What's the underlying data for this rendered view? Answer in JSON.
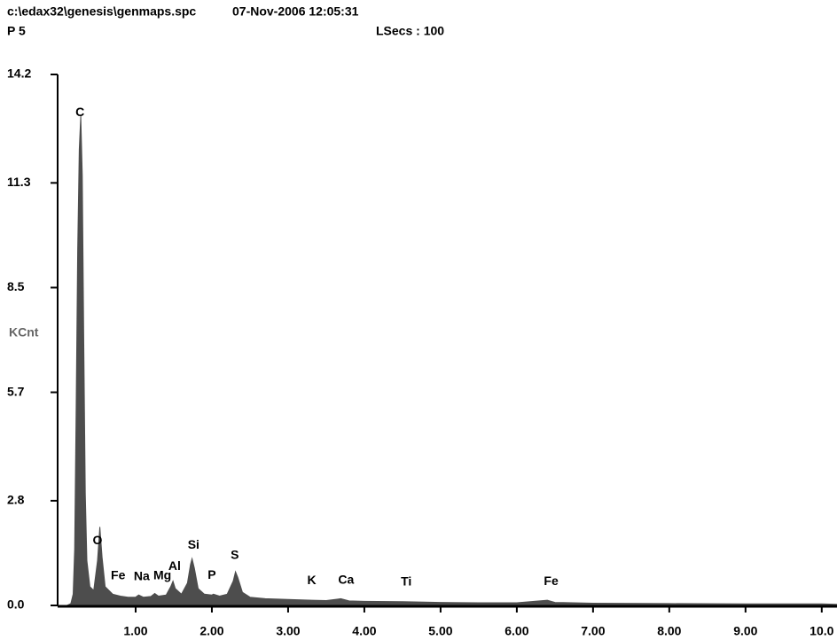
{
  "chart_data": {
    "type": "area",
    "title": "c:\\edax32\\genesis\\genmaps.spc",
    "timestamp": "07-Nov-2006 12:05:31",
    "subtitle": "P 5",
    "live_time": "LSecs : 100",
    "ylabel": "KCnt",
    "color": "#4d4d4d",
    "x": [
      0.1,
      0.15,
      0.18,
      0.2,
      0.22,
      0.24,
      0.26,
      0.28,
      0.3,
      0.32,
      0.34,
      0.36,
      0.4,
      0.45,
      0.5,
      0.53,
      0.56,
      0.6,
      0.7,
      0.8,
      0.9,
      1.0,
      1.04,
      1.1,
      1.2,
      1.25,
      1.3,
      1.4,
      1.46,
      1.49,
      1.52,
      1.6,
      1.68,
      1.72,
      1.74,
      1.77,
      1.82,
      1.9,
      2.0,
      2.02,
      2.1,
      2.2,
      2.28,
      2.31,
      2.34,
      2.4,
      2.5,
      2.7,
      3.0,
      3.31,
      3.5,
      3.69,
      3.8,
      4.0,
      4.51,
      5.0,
      5.5,
      6.0,
      6.4,
      6.5,
      7.0,
      8.0,
      9.0,
      10.0,
      10.2
    ],
    "values": [
      0.0,
      0.05,
      0.3,
      1.5,
      5.3,
      9.5,
      12.2,
      13.1,
      11.5,
      7.0,
      3.0,
      1.2,
      0.5,
      0.4,
      1.2,
      2.1,
      1.3,
      0.5,
      0.3,
      0.25,
      0.22,
      0.22,
      0.28,
      0.22,
      0.24,
      0.32,
      0.25,
      0.28,
      0.5,
      0.65,
      0.45,
      0.3,
      0.6,
      1.1,
      1.25,
      1.0,
      0.45,
      0.3,
      0.28,
      0.3,
      0.25,
      0.3,
      0.65,
      0.9,
      0.75,
      0.35,
      0.22,
      0.18,
      0.16,
      0.14,
      0.13,
      0.18,
      0.12,
      0.11,
      0.1,
      0.08,
      0.07,
      0.07,
      0.14,
      0.08,
      0.06,
      0.05,
      0.04,
      0.04,
      0.03
    ],
    "annotations": [
      {
        "text": "C",
        "x": 0.27
      },
      {
        "text": "O",
        "x": 0.5
      },
      {
        "text": "Fe",
        "x": 0.77
      },
      {
        "text": "Na",
        "x": 1.08
      },
      {
        "text": "Mg",
        "x": 1.35
      },
      {
        "text": "Al",
        "x": 1.51
      },
      {
        "text": "Si",
        "x": 1.76
      },
      {
        "text": "P",
        "x": 2.0
      },
      {
        "text": "S",
        "x": 2.3
      },
      {
        "text": "K",
        "x": 3.31
      },
      {
        "text": "Ca",
        "x": 3.76
      },
      {
        "text": "Ti",
        "x": 4.55
      },
      {
        "text": "Fe",
        "x": 6.45
      }
    ],
    "xlim": [
      0,
      10.2
    ],
    "ylim": [
      0,
      14.2
    ],
    "xticks": [
      {
        "value": 1,
        "label": "1.00"
      },
      {
        "value": 2,
        "label": "2.00"
      },
      {
        "value": 3,
        "label": "3.00"
      },
      {
        "value": 4,
        "label": "4.00"
      },
      {
        "value": 5,
        "label": "5.00"
      },
      {
        "value": 6,
        "label": "6.00"
      },
      {
        "value": 7,
        "label": "7.00"
      },
      {
        "value": 8,
        "label": "8.00"
      },
      {
        "value": 9,
        "label": "9.00"
      },
      {
        "value": 10,
        "label": "10.0"
      }
    ],
    "yticks": [
      {
        "value": 0,
        "label": "0.0"
      },
      2.8,
      5.7,
      8.5,
      11.3,
      14.2
    ]
  }
}
